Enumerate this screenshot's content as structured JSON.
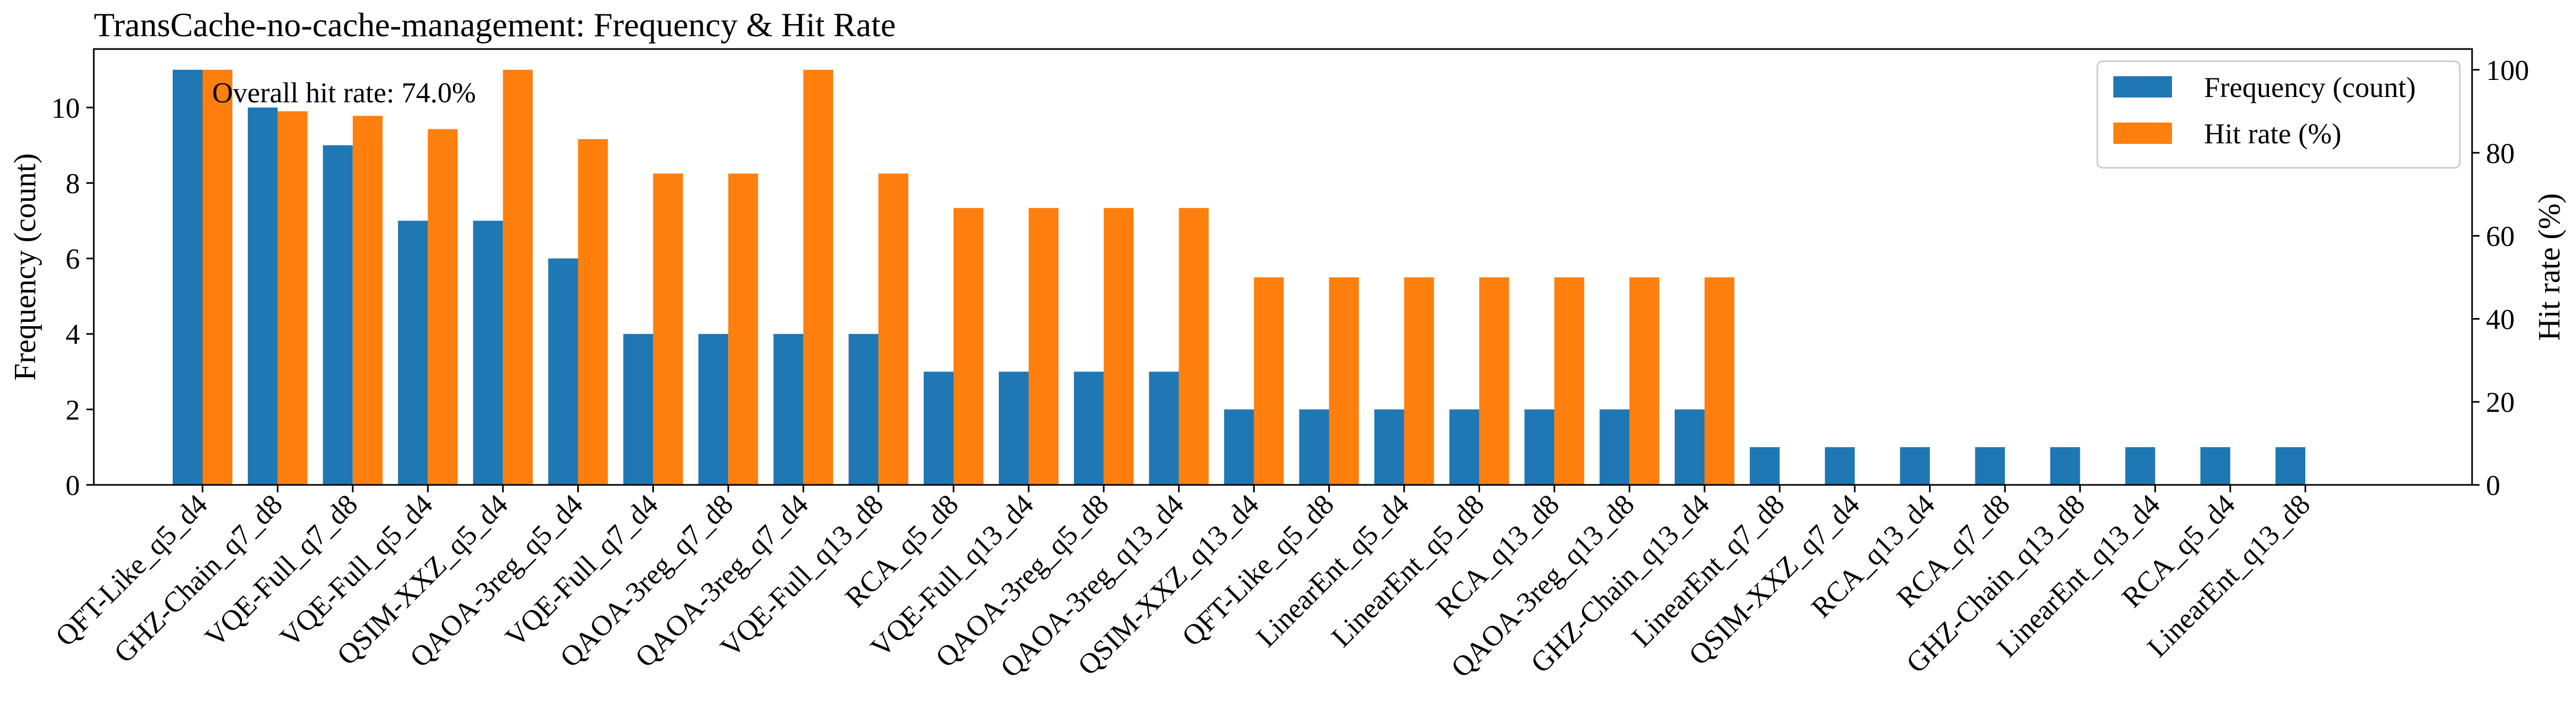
{
  "chart_data": {
    "type": "bar",
    "title": "TransCache-no-cache-management: Frequency & Hit Rate",
    "annotation": "Overall hit rate: 74.0%",
    "categories": [
      "QFT-Like_q5_d4",
      "GHZ-Chain_q7_d8",
      "VQE-Full_q7_d8",
      "VQE-Full_q5_d4",
      "QSIM-XXZ_q5_d4",
      "QAOA-3reg_q5_d4",
      "VQE-Full_q7_d4",
      "QAOA-3reg_q7_d8",
      "QAOA-3reg_q7_d4",
      "VQE-Full_q13_d8",
      "RCA_q5_d8",
      "VQE-Full_q13_d4",
      "QAOA-3reg_q5_d8",
      "QAOA-3reg_q13_d4",
      "QSIM-XXZ_q13_d4",
      "QFT-Like_q5_d8",
      "LinearEnt_q5_d4",
      "LinearEnt_q5_d8",
      "RCA_q13_d8",
      "QAOA-3reg_q13_d8",
      "GHZ-Chain_q13_d4",
      "LinearEnt_q7_d8",
      "QSIM-XXZ_q7_d4",
      "RCA_q13_d4",
      "RCA_q7_d8",
      "GHZ-Chain_q13_d8",
      "LinearEnt_q13_d4",
      "RCA_q5_d4",
      "LinearEnt_q13_d8"
    ],
    "series": [
      {
        "name": "Frequency (count)",
        "axis": "left",
        "color": "#1f77b4",
        "values": [
          11,
          10,
          9,
          7,
          7,
          6,
          4,
          4,
          4,
          4,
          3,
          3,
          3,
          3,
          2,
          2,
          2,
          2,
          2,
          2,
          2,
          1,
          1,
          1,
          1,
          1,
          1,
          1,
          1
        ]
      },
      {
        "name": "Hit rate (%)",
        "axis": "right",
        "color": "#ff7f0e",
        "values": [
          100,
          90,
          88.9,
          85.7,
          100,
          83.3,
          75,
          75,
          100,
          75,
          66.7,
          66.7,
          66.7,
          66.7,
          50,
          50,
          50,
          50,
          50,
          50,
          50,
          0,
          0,
          0,
          0,
          0,
          0,
          0,
          0
        ]
      }
    ],
    "ylabel": "Frequency (count)",
    "y2label": "Hit rate (%)",
    "ylim": [
      0,
      11.55
    ],
    "y2lim": [
      0,
      105
    ],
    "yticks": [
      0,
      2,
      4,
      6,
      8,
      10
    ],
    "y2ticks": [
      0,
      20,
      40,
      60,
      80,
      100
    ],
    "grid": false,
    "legend_position": "top-right"
  }
}
